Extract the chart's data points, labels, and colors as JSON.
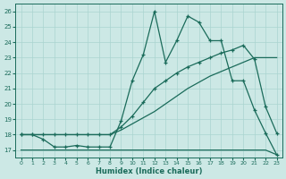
{
  "background_color": "#cce8e5",
  "grid_color": "#aad4d0",
  "line_color": "#1a6b5a",
  "xlabel": "Humidex (Indice chaleur)",
  "xlim": [
    -0.5,
    23.5
  ],
  "ylim": [
    16.5,
    26.5
  ],
  "yticks": [
    17,
    18,
    19,
    20,
    21,
    22,
    23,
    24,
    25,
    26
  ],
  "xticks": [
    0,
    1,
    2,
    3,
    4,
    5,
    6,
    7,
    8,
    9,
    10,
    11,
    12,
    13,
    14,
    15,
    16,
    17,
    18,
    19,
    20,
    21,
    22,
    23
  ],
  "line1_x": [
    0,
    1,
    2,
    3,
    4,
    5,
    6,
    7,
    8,
    9,
    10,
    11,
    12,
    13,
    14,
    15,
    16,
    17,
    18,
    19,
    20,
    21,
    22,
    23
  ],
  "line1_y": [
    17.0,
    17.0,
    17.0,
    17.0,
    17.0,
    17.0,
    17.0,
    17.0,
    17.0,
    17.0,
    17.0,
    17.0,
    17.0,
    17.0,
    17.0,
    17.0,
    17.0,
    17.0,
    17.0,
    17.0,
    17.0,
    17.0,
    17.0,
    16.7
  ],
  "line2_x": [
    0,
    1,
    2,
    3,
    4,
    5,
    6,
    7,
    8,
    9,
    10,
    11,
    12,
    13,
    14,
    15,
    16,
    17,
    18,
    19,
    20,
    21,
    22,
    23
  ],
  "line2_y": [
    18.0,
    18.0,
    18.0,
    18.0,
    18.0,
    18.0,
    18.0,
    18.0,
    18.0,
    18.3,
    18.7,
    19.1,
    19.5,
    20.0,
    20.5,
    21.0,
    21.4,
    21.8,
    22.1,
    22.4,
    22.7,
    23.0,
    23.0,
    23.0
  ],
  "line3_x": [
    0,
    1,
    2,
    3,
    4,
    5,
    6,
    7,
    8,
    9,
    10,
    11,
    12,
    13,
    14,
    15,
    16,
    17,
    18,
    19,
    20,
    21,
    22,
    23
  ],
  "line3_y": [
    18.0,
    18.0,
    18.0,
    18.0,
    18.0,
    18.0,
    18.0,
    18.0,
    18.0,
    18.5,
    19.2,
    20.1,
    21.0,
    21.5,
    22.0,
    22.4,
    22.7,
    23.0,
    23.3,
    23.5,
    23.8,
    22.9,
    19.8,
    18.1
  ],
  "line4_x": [
    0,
    1,
    2,
    3,
    4,
    5,
    6,
    7,
    8,
    9,
    10,
    11,
    12,
    13,
    14,
    15,
    16,
    17,
    18,
    19,
    20,
    21,
    22,
    23
  ],
  "line4_y": [
    18.0,
    18.0,
    17.7,
    17.2,
    17.2,
    17.3,
    17.2,
    17.2,
    17.2,
    18.9,
    21.5,
    23.2,
    26.0,
    22.7,
    24.1,
    25.7,
    25.3,
    24.1,
    24.1,
    21.5,
    21.5,
    19.6,
    18.1,
    16.7
  ],
  "line1_has_markers": false,
  "line2_has_markers": false,
  "line3_has_markers": true,
  "line4_has_markers": true
}
